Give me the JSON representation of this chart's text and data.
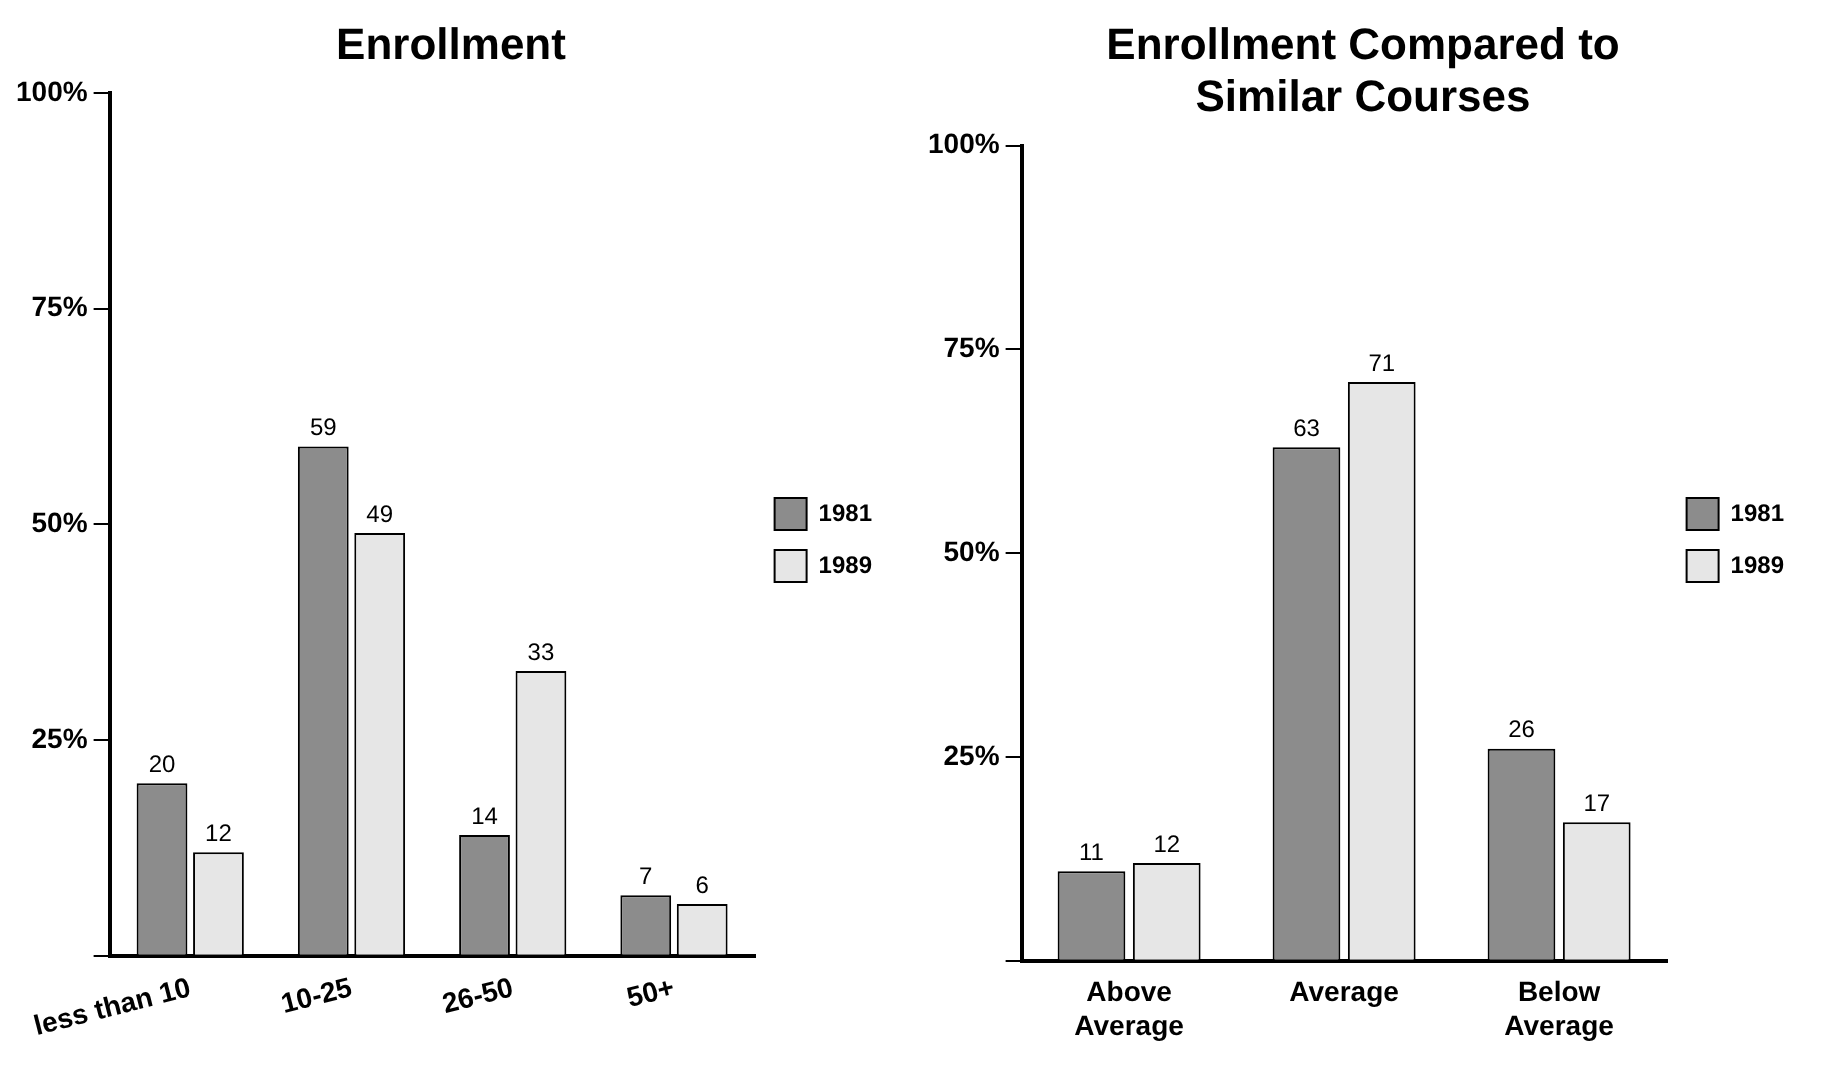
{
  "chart_data": [
    {
      "type": "bar",
      "title": "Enrollment",
      "categories": [
        "less than 10",
        "10-25",
        "26-50",
        "50+"
      ],
      "series": [
        {
          "name": "1981",
          "color": "#8c8c8c",
          "values": [
            20,
            59,
            14,
            7
          ]
        },
        {
          "name": "1989",
          "color": "#e6e6e6",
          "values": [
            12,
            49,
            33,
            6
          ]
        }
      ],
      "ylim": [
        0,
        100
      ],
      "yticks": [
        {
          "value": 0,
          "label": null
        },
        {
          "value": 25,
          "label": "25%"
        },
        {
          "value": 50,
          "label": "50%"
        },
        {
          "value": 75,
          "label": "75%"
        },
        {
          "value": 100,
          "label": "100%"
        }
      ],
      "data_labels": true,
      "legend": "right",
      "grid": false
    },
    {
      "type": "bar",
      "title": "Enrollment Compared to Similar Courses",
      "categories": [
        "Above Average",
        "Average",
        "Below Average"
      ],
      "series": [
        {
          "name": "1981",
          "color": "#8c8c8c",
          "values": [
            11,
            63,
            26
          ]
        },
        {
          "name": "1989",
          "color": "#e6e6e6",
          "values": [
            12,
            71,
            17
          ]
        }
      ],
      "ylim": [
        0,
        100
      ],
      "yticks": [
        {
          "value": 0,
          "label": null
        },
        {
          "value": 25,
          "label": "25%"
        },
        {
          "value": 50,
          "label": "50%"
        },
        {
          "value": 75,
          "label": "75%"
        },
        {
          "value": 100,
          "label": "100%"
        }
      ],
      "data_labels": true,
      "legend": "right",
      "grid": false
    }
  ]
}
